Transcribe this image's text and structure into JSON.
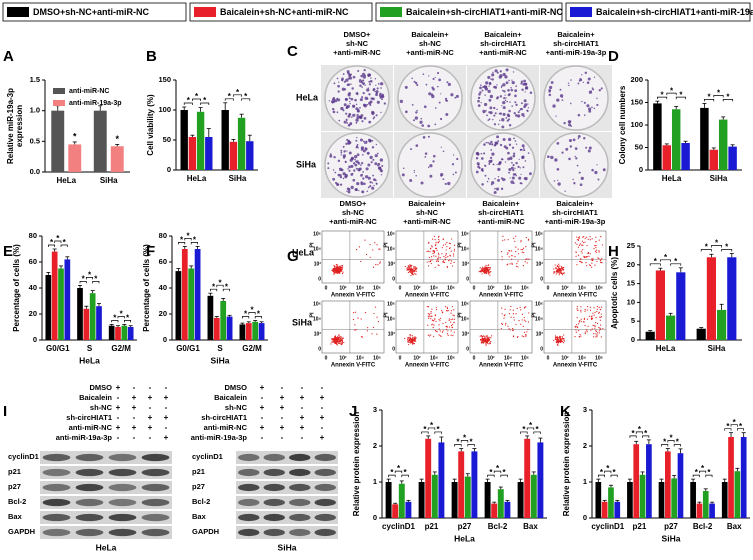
{
  "legend": {
    "items": [
      {
        "name": "DMSO+sh-NC+anti-miR-NC",
        "color": "#000000"
      },
      {
        "name": "Baicalein+sh-NC+anti-miR-NC",
        "color": "#e8202a"
      },
      {
        "name": "Baicalein+sh-circHIAT1+anti-miR-NC",
        "color": "#22a022"
      },
      {
        "name": "Baicalein+sh-circHIAT1+anti-miR-19a-3p",
        "color": "#1a1ad4"
      }
    ]
  },
  "panels": {
    "letters": [
      "A",
      "B",
      "C",
      "D",
      "E",
      "F",
      "G",
      "H",
      "I",
      "J",
      "K"
    ]
  },
  "colony": {
    "columns": [
      [
        "DMSO+",
        "sh-NC",
        "+anti-miR-NC"
      ],
      [
        "Baicalein+",
        "sh-NC",
        "+anti-miR-NC"
      ],
      [
        "Baicalein+",
        "sh-circHIAT1",
        "+anti-miR-NC"
      ],
      [
        "Baicalein+",
        "sh-circHIAT1",
        "+anti-miR-19a-3p"
      ]
    ],
    "rows": [
      "HeLa",
      "SiHa"
    ]
  },
  "flow": {
    "columns": [
      [
        "DMSO+",
        "sh-NC",
        "+anti-miR-NC"
      ],
      [
        "Baicalein+",
        "sh-NC",
        "+anti-miR-NC"
      ],
      [
        "Baicalein+",
        "sh-circHIAT1",
        "+anti-miR-NC"
      ],
      [
        "Baicalein+",
        "sh-circHIAT1",
        "+anti-miR-19a-3p"
      ]
    ],
    "rows": [
      "HeLa",
      "SiHa"
    ],
    "xlabel": "Annexin V-FITC",
    "ylabel": "PI",
    "ticks": [
      "0",
      "10²",
      "10⁴",
      "10⁶"
    ]
  },
  "blots": [
    {
      "treatments": [
        {
          "name": "DMSO",
          "marks": [
            "+",
            "-",
            "-",
            "-"
          ]
        },
        {
          "name": "Baicalein",
          "marks": [
            "-",
            "+",
            "+",
            "+"
          ]
        },
        {
          "name": "sh-NC",
          "marks": [
            "+",
            "+",
            "-",
            "-"
          ]
        },
        {
          "name": "sh-circHIAT1",
          "marks": [
            "-",
            "-",
            "+",
            "+"
          ]
        },
        {
          "name": "anti-miR-NC",
          "marks": [
            "+",
            "+",
            "+",
            "-"
          ]
        },
        {
          "name": "anti-miR-19a-3p",
          "marks": [
            "-",
            "-",
            "-",
            "+"
          ]
        }
      ],
      "bands": [
        "cyclinD1",
        "p21",
        "p27",
        "Bcl-2",
        "Bax",
        "GAPDH"
      ],
      "cell": "HeLa"
    },
    {
      "treatments": [
        {
          "name": "DMSO",
          "marks": [
            "+",
            "-",
            "-",
            "-"
          ]
        },
        {
          "name": "Baicalein",
          "marks": [
            "-",
            "+",
            "+",
            "+"
          ]
        },
        {
          "name": "sh-NC",
          "marks": [
            "+",
            "+",
            "-",
            "-"
          ]
        },
        {
          "name": "sh-circHIAT1",
          "marks": [
            "-",
            "-",
            "+",
            "+"
          ]
        },
        {
          "name": "anti-miR-NC",
          "marks": [
            "+",
            "+",
            "+",
            "-"
          ]
        },
        {
          "name": "anti-miR-19a-3p",
          "marks": [
            "-",
            "-",
            "-",
            "+"
          ]
        }
      ],
      "bands": [
        "cyclinD1",
        "p21",
        "p27",
        "Bcl-2",
        "Bax",
        "GAPDH"
      ],
      "cell": "SiHa"
    }
  ],
  "chart_data": [
    {
      "type": "bar",
      "ylabel": [
        "Relative miR-19a-3p",
        "expression"
      ],
      "categories": [
        "HeLa",
        "SiHa"
      ],
      "series": [
        {
          "name": "anti-miR-NC",
          "color": "#555555",
          "values": [
            1.0,
            1.0
          ],
          "errors": [
            0.08,
            0.08
          ]
        },
        {
          "name": "anti-miR-19a-3p",
          "color": "#f28080",
          "values": [
            0.45,
            0.42
          ],
          "errors": [
            0.04,
            0.03
          ]
        }
      ],
      "ylim": [
        0,
        1.5
      ],
      "yticks": [
        {
          "value": 0,
          "label": "0.0"
        },
        0.5,
        {
          "value": 1,
          "label": "1.0"
        },
        1.5
      ],
      "significance": "*"
    },
    {
      "type": "bar",
      "ylabel": "Cell viability (%)",
      "categories": [
        "HeLa",
        "SiHa"
      ],
      "series": [
        {
          "values": [
            100,
            100
          ],
          "errors": [
            5,
            12
          ]
        },
        {
          "values": [
            55,
            47
          ],
          "errors": [
            3,
            4
          ]
        },
        {
          "values": [
            97,
            87
          ],
          "errors": [
            7,
            6
          ]
        },
        {
          "values": [
            55,
            48
          ],
          "errors": [
            14,
            10
          ]
        }
      ],
      "ylim": [
        0,
        150
      ],
      "yticks": [
        0,
        50,
        100,
        150
      ],
      "significance": "*"
    },
    {
      "type": "bar",
      "ylabel": "Colony cell numbers",
      "categories": [
        "HeLa",
        "SiHa"
      ],
      "series": [
        {
          "values": [
            148,
            138
          ],
          "errors": [
            5,
            10
          ]
        },
        {
          "values": [
            55,
            45
          ],
          "errors": [
            3,
            4
          ]
        },
        {
          "values": [
            135,
            112
          ],
          "errors": [
            6,
            6
          ]
        },
        {
          "values": [
            60,
            52
          ],
          "errors": [
            4,
            4
          ]
        }
      ],
      "ylim": [
        0,
        200
      ],
      "yticks": [
        0,
        50,
        100,
        150,
        200
      ],
      "significance": "*"
    },
    {
      "type": "bar",
      "ylabel": "Percentage of cells (%)",
      "xlabel": "HeLa",
      "categories": [
        "G0/G1",
        "S",
        "G2/M"
      ],
      "series": [
        {
          "values": [
            50,
            40,
            11
          ],
          "errors": [
            2,
            2,
            1
          ]
        },
        {
          "values": [
            68,
            24,
            10
          ],
          "errors": [
            2,
            2,
            1
          ]
        },
        {
          "values": [
            55,
            36,
            11
          ],
          "errors": [
            2,
            2,
            1
          ]
        },
        {
          "values": [
            62,
            26,
            10
          ],
          "errors": [
            2,
            2,
            1
          ]
        }
      ],
      "ylim": [
        0,
        80
      ],
      "yticks": [
        0,
        20,
        40,
        60,
        80
      ],
      "significance": "*"
    },
    {
      "type": "bar",
      "ylabel": "Percentage of cells (%)",
      "xlabel": "SiHa",
      "categories": [
        "G0/G1",
        "S",
        "G2/M"
      ],
      "series": [
        {
          "values": [
            53,
            34,
            12
          ],
          "errors": [
            2,
            2,
            1
          ]
        },
        {
          "values": [
            70,
            17,
            13
          ],
          "errors": [
            2,
            1,
            1
          ]
        },
        {
          "values": [
            55,
            30,
            14
          ],
          "errors": [
            2,
            2,
            1
          ]
        },
        {
          "values": [
            70,
            18,
            13
          ],
          "errors": [
            2,
            1,
            1
          ]
        }
      ],
      "ylim": [
        0,
        80
      ],
      "yticks": [
        0,
        20,
        40,
        60,
        80
      ],
      "significance": "*"
    },
    {
      "type": "bar",
      "ylabel": "Apoptotic cells (%)",
      "categories": [
        "HeLa",
        "SiHa"
      ],
      "series": [
        {
          "values": [
            2.2,
            3
          ],
          "errors": [
            0.3,
            0.3
          ]
        },
        {
          "values": [
            18.5,
            22
          ],
          "errors": [
            0.6,
            0.8
          ]
        },
        {
          "values": [
            6.5,
            8
          ],
          "errors": [
            0.6,
            1.5
          ]
        },
        {
          "values": [
            18,
            22
          ],
          "errors": [
            1.2,
            1
          ]
        }
      ],
      "ylim": [
        0,
        25
      ],
      "yticks": [
        0,
        5,
        10,
        15,
        20,
        25
      ],
      "significance": "*"
    },
    {
      "type": "bar",
      "ylabel": "Relative protein expression",
      "xlabel": "HeLa",
      "categories": [
        "cyclinD1",
        "p21",
        "p27",
        "Bcl-2",
        "Bax"
      ],
      "series": [
        {
          "values": [
            1,
            1,
            1,
            1,
            1
          ],
          "errors": [
            0.08,
            0.08,
            0.08,
            0.08,
            0.08
          ]
        },
        {
          "values": [
            0.38,
            2.2,
            1.85,
            0.4,
            2.2
          ],
          "errors": [
            0.03,
            0.08,
            0.08,
            0.04,
            0.08
          ]
        },
        {
          "values": [
            0.95,
            1.2,
            1.15,
            0.8,
            1.2
          ],
          "errors": [
            0.08,
            0.08,
            0.08,
            0.06,
            0.08
          ]
        },
        {
          "values": [
            0.45,
            2.1,
            1.85,
            0.45,
            2.1
          ],
          "errors": [
            0.04,
            0.15,
            0.08,
            0.04,
            0.12
          ]
        }
      ],
      "ylim": [
        0,
        3
      ],
      "yticks": [
        0,
        1,
        2,
        3
      ],
      "significance": "*"
    },
    {
      "type": "bar",
      "ylabel": "Relative protein expression",
      "xlabel": "SiHa",
      "categories": [
        "cyclinD1",
        "p21",
        "p27",
        "Bcl-2",
        "Bax"
      ],
      "series": [
        {
          "values": [
            1,
            1,
            1,
            1,
            1
          ],
          "errors": [
            0.08,
            0.08,
            0.08,
            0.08,
            0.08
          ]
        },
        {
          "values": [
            0.45,
            2.05,
            1.85,
            0.4,
            2.25
          ],
          "errors": [
            0.04,
            0.08,
            0.08,
            0.04,
            0.12
          ]
        },
        {
          "values": [
            0.85,
            1.2,
            1.1,
            0.75,
            1.3
          ],
          "errors": [
            0.06,
            0.08,
            0.08,
            0.06,
            0.08
          ]
        },
        {
          "values": [
            0.45,
            2.05,
            1.8,
            0.4,
            2.25
          ],
          "errors": [
            0.04,
            0.12,
            0.12,
            0.04,
            0.12
          ]
        }
      ],
      "ylim": [
        0,
        3
      ],
      "yticks": [
        0,
        1,
        2,
        3
      ],
      "significance": "*"
    }
  ]
}
